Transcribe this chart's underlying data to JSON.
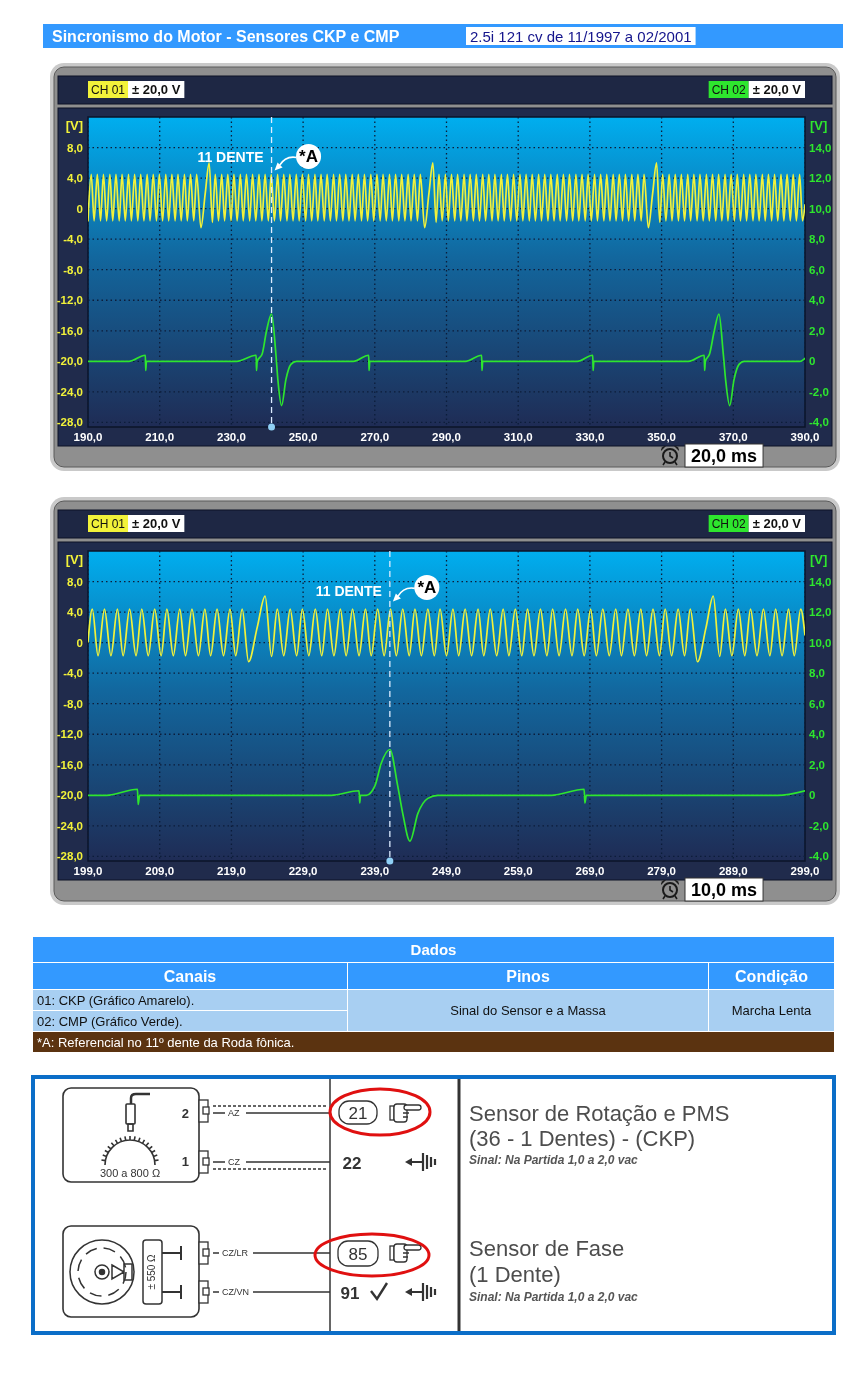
{
  "chart_data": [
    {
      "type": "line",
      "title": "Sincronismo do Motor - Sensores CKP e CMP",
      "subtitle": "2.5i 121 cv de 11/1997 a 02/2001",
      "ylabel": "[V]",
      "y2label": "[V]",
      "xlim": [
        190,
        390
      ],
      "xticks": [
        {
          "value": 190,
          "label": "190,0"
        },
        {
          "value": 210,
          "label": "210,0"
        },
        {
          "value": 230,
          "label": "230,0"
        },
        {
          "value": 250,
          "label": "250,0"
        },
        {
          "value": 270,
          "label": "270,0"
        },
        {
          "value": 290,
          "label": "290,0"
        },
        {
          "value": 310,
          "label": "310,0"
        },
        {
          "value": 330,
          "label": "330,0"
        },
        {
          "value": 350,
          "label": "350,0"
        },
        {
          "value": 370,
          "label": "370,0"
        },
        {
          "value": 390,
          "label": "390,0"
        }
      ],
      "ylim": [
        -28.6,
        12
      ],
      "yticks": [
        {
          "value": 8,
          "label": "8,0"
        },
        {
          "value": 4,
          "label": "4,0"
        },
        0,
        {
          "value": -4,
          "label": "-4,0"
        },
        {
          "value": -8,
          "label": "-8,0"
        },
        {
          "value": -12,
          "label": "-12,0"
        },
        {
          "value": -16,
          "label": "-16,0"
        },
        {
          "value": -20,
          "label": "-20,0"
        },
        {
          "value": -24,
          "label": "-24,0"
        },
        {
          "value": -28,
          "label": "-28,0"
        }
      ],
      "y2lim": [
        -4.3,
        16
      ],
      "y2ticks": [
        {
          "value": 14,
          "label": "14,0"
        },
        {
          "value": 12,
          "label": "12,0"
        },
        {
          "value": 10,
          "label": "10,0"
        },
        {
          "value": 8,
          "label": "8,0"
        },
        {
          "value": 6,
          "label": "6,0"
        },
        {
          "value": 4,
          "label": "4,0"
        },
        {
          "value": 2,
          "label": "2,0"
        },
        0,
        {
          "value": -2,
          "label": "-2,0"
        },
        {
          "value": -4,
          "label": "-4,0"
        }
      ],
      "grid": true,
      "legend": "top",
      "series": [
        {
          "name": "CH 01",
          "color": "#f2f23a",
          "x": [
            190.0,
            190.9,
            191.7,
            192.6,
            193.5,
            194.3,
            195.2,
            196.1,
            196.9,
            197.8,
            198.7,
            199.5,
            200.4,
            201.3,
            202.1,
            203.0,
            203.9,
            204.7,
            205.6,
            206.5,
            207.3,
            208.2,
            209.1,
            209.9,
            210.8,
            211.7,
            212.5,
            213.4,
            214.3,
            215.1,
            216.0,
            216.9,
            217.7,
            218.6,
            219.5,
            220.3,
            221.5,
            222.7,
            223.8,
            224.7,
            225.5,
            226.4,
            227.3,
            228.1,
            229.0,
            229.9,
            230.7,
            231.6,
            232.5,
            233.3,
            234.2,
            235.1,
            235.9,
            236.8,
            237.7,
            238.5,
            239.4,
            240.3,
            241.1,
            242.0,
            242.9,
            243.7,
            244.6,
            245.5,
            246.3,
            247.2,
            248.1,
            248.9,
            249.8,
            250.7,
            251.5,
            252.4,
            253.3,
            254.1,
            255.0,
            255.9,
            256.7,
            257.6,
            258.5,
            259.3,
            260.2,
            261.1,
            261.9,
            262.8,
            263.7,
            264.5,
            265.4,
            266.3,
            267.1,
            268.0,
            268.9,
            269.7,
            270.6,
            271.5,
            272.3,
            273.2,
            274.1,
            274.9,
            275.8,
            276.7,
            277.5,
            278.4,
            279.3,
            280.1,
            281.0,
            281.9,
            282.7,
            283.9,
            285.1,
            286.2,
            287.1,
            287.9,
            288.8,
            289.7,
            290.5,
            291.4,
            292.3,
            293.1,
            294.0,
            294.9,
            295.7,
            296.6,
            297.5,
            298.3,
            299.2,
            300.1,
            300.9,
            301.8,
            302.7,
            303.5,
            304.4,
            305.3,
            306.1,
            307.0,
            307.9,
            308.7,
            309.6,
            310.5,
            311.3,
            312.2,
            313.1,
            313.9,
            314.8,
            315.7,
            316.5,
            317.4,
            318.3,
            319.1,
            320.0,
            320.9,
            321.7,
            322.6,
            323.5,
            324.3,
            325.2,
            326.1,
            326.9,
            327.8,
            328.7,
            329.5,
            330.4,
            331.3,
            332.1,
            333.0,
            333.9,
            334.7,
            335.6,
            336.5,
            337.3,
            338.2,
            339.1,
            339.9,
            340.8,
            341.7,
            342.5,
            343.4,
            344.3,
            345.1,
            346.3,
            347.5,
            348.6,
            349.5,
            350.3,
            351.2,
            352.1,
            352.9,
            353.8,
            354.7,
            355.5,
            356.4,
            357.3,
            358.1,
            359.0,
            359.9,
            360.7,
            361.6,
            362.5,
            363.3,
            364.2,
            365.1,
            365.9,
            366.8,
            367.7,
            368.5,
            369.4,
            370.3,
            371.1,
            372.0,
            372.9,
            373.7,
            374.6,
            375.5,
            376.3,
            377.2,
            378.1,
            378.9,
            379.8,
            380.7,
            381.5,
            382.4,
            383.3,
            384.1,
            385.0,
            385.9,
            386.7,
            387.6,
            388.5,
            389.3,
            390.0
          ],
          "values": [
            -1.6,
            4.5,
            -1.6,
            4.5,
            -1.6,
            4.5,
            -1.6,
            4.5,
            -1.6,
            4.5,
            -1.6,
            4.5,
            -1.6,
            4.5,
            -1.6,
            4.5,
            -1.6,
            4.5,
            -1.6,
            4.5,
            -1.6,
            4.5,
            -1.6,
            4.5,
            -1.6,
            4.5,
            -1.6,
            4.5,
            -1.6,
            4.5,
            -1.6,
            4.5,
            -1.6,
            4.5,
            -1.6,
            4.5,
            -2.5,
            2.0,
            6.0,
            -1.8,
            4.5,
            -1.6,
            4.5,
            -1.6,
            4.5,
            -1.6,
            4.5,
            -1.6,
            4.5,
            -1.6,
            4.5,
            -1.6,
            4.5,
            -1.6,
            4.5,
            -1.6,
            4.5,
            -1.6,
            4.5,
            -1.6,
            4.5,
            -1.6,
            4.5,
            -1.6,
            4.5,
            -1.6,
            4.5,
            -1.6,
            4.5,
            -1.6,
            4.5,
            -1.6,
            4.5,
            -1.6,
            4.5,
            -1.6,
            4.5,
            -1.6,
            4.5,
            -1.6,
            4.5,
            -1.6,
            4.5,
            -1.6,
            4.5,
            -1.6,
            4.5,
            -1.6,
            4.5,
            -1.6,
            4.5,
            -1.6,
            4.5,
            -1.6,
            4.5,
            -1.6,
            4.5,
            -1.6,
            4.5,
            -1.6,
            4.5,
            -1.6,
            4.5,
            -1.6,
            4.5,
            -1.6,
            4.5,
            -2.5,
            2.0,
            6.0,
            -1.8,
            4.5,
            -1.6,
            4.5,
            -1.6,
            4.5,
            -1.6,
            4.5,
            -1.6,
            4.5,
            -1.6,
            4.5,
            -1.6,
            4.5,
            -1.6,
            4.5,
            -1.6,
            4.5,
            -1.6,
            4.5,
            -1.6,
            4.5,
            -1.6,
            4.5,
            -1.6,
            4.5,
            -1.6,
            4.5,
            -1.6,
            4.5,
            -1.6,
            4.5,
            -1.6,
            4.5,
            -1.6,
            4.5,
            -1.6,
            4.5,
            -1.6,
            4.5,
            -1.6,
            4.5,
            -1.6,
            4.5,
            -1.6,
            4.5,
            -1.6,
            4.5,
            -1.6,
            4.5,
            -1.6,
            4.5,
            -1.6,
            4.5,
            -1.6,
            4.5,
            -1.6,
            4.5,
            -1.6,
            4.5,
            -1.6,
            4.5,
            -1.6,
            4.5,
            -1.6,
            4.5,
            -1.6,
            4.5,
            -2.5,
            2.0,
            6.0,
            -1.8,
            4.5,
            -1.6,
            4.5,
            -1.6,
            4.5,
            -1.6,
            4.5,
            -1.6,
            4.5,
            -1.6,
            4.5,
            -1.6,
            4.5,
            -1.6,
            4.5,
            -1.6,
            4.5,
            -1.6,
            4.5,
            -1.6,
            4.5,
            -1.6,
            4.5,
            -1.6,
            4.5,
            -1.6,
            4.5,
            -1.6,
            4.5,
            -1.6,
            4.5,
            -1.6,
            4.5,
            -1.6,
            4.5,
            -1.6,
            4.5,
            -1.6,
            4.5,
            -1.6,
            4.5,
            -1.6,
            4.5,
            -1.6,
            4.5,
            -1.6,
            0.5
          ]
        },
        {
          "name": "CH 02",
          "color": "#2ee62e",
          "axis": "y2",
          "x": [
            190.0,
            201.4,
            206.0,
            206.1,
            206.3,
            231.5,
            236.9,
            237.0,
            237.2,
            238.6,
            239.8,
            241.2,
            242.4,
            243.0,
            244.0,
            245.2,
            246.6,
            248.1,
            264.0,
            268.3,
            268.4,
            268.6,
            295.3,
            299.8,
            299.9,
            300.1,
            326.5,
            330.8,
            330.9,
            331.1,
            357.5,
            361.9,
            362.0,
            362.2,
            363.4,
            364.7,
            366.0,
            367.2,
            367.9,
            369.0,
            370.2,
            371.6,
            373.0,
            388.5,
            390.0
          ],
          "values": [
            0,
            0,
            0.4,
            -0.6,
            0,
            0,
            0.4,
            -0.6,
            0,
            0.5,
            2.0,
            3.1,
            0.5,
            -1.3,
            -2.9,
            -1.2,
            -0.2,
            0,
            0,
            0.4,
            -0.6,
            0,
            0,
            0.4,
            -0.6,
            0,
            0,
            0.4,
            -0.6,
            0,
            0,
            0.4,
            -0.6,
            0,
            0.5,
            2.0,
            3.1,
            0.5,
            -1.3,
            -2.9,
            -1.2,
            -0.2,
            0,
            0,
            0.2
          ]
        }
      ],
      "ref_lines": [
        {
          "axis": "x",
          "value": 241.2,
          "label": "11 DENTE",
          "color": "#dcecff",
          "line_style": "dashed"
        }
      ],
      "annotations": [
        "± 20,0 V",
        "± 20,0 V",
        "20,0 ms",
        {
          "text": "*A",
          "x": 241.2,
          "y": 5.0
        }
      ]
    },
    {
      "type": "line",
      "ylabel": "[V]",
      "y2label": "[V]",
      "xlim": [
        199,
        299
      ],
      "xticks": [
        {
          "value": 199,
          "label": "199,0"
        },
        {
          "value": 209,
          "label": "209,0"
        },
        {
          "value": 219,
          "label": "219,0"
        },
        {
          "value": 229,
          "label": "229,0"
        },
        {
          "value": 239,
          "label": "239,0"
        },
        {
          "value": 249,
          "label": "249,0"
        },
        {
          "value": 259,
          "label": "259,0"
        },
        {
          "value": 269,
          "label": "269,0"
        },
        {
          "value": 279,
          "label": "279,0"
        },
        {
          "value": 289,
          "label": "289,0"
        },
        {
          "value": 299,
          "label": "299,0"
        }
      ],
      "ylim": [
        -28.6,
        12
      ],
      "yticks": [
        {
          "value": 8,
          "label": "8,0"
        },
        {
          "value": 4,
          "label": "4,0"
        },
        0,
        {
          "value": -4,
          "label": "-4,0"
        },
        {
          "value": -8,
          "label": "-8,0"
        },
        {
          "value": -12,
          "label": "-12,0"
        },
        {
          "value": -16,
          "label": "-16,0"
        },
        {
          "value": -20,
          "label": "-20,0"
        },
        {
          "value": -24,
          "label": "-24,0"
        },
        {
          "value": -28,
          "label": "-28,0"
        }
      ],
      "y2lim": [
        -4.3,
        16
      ],
      "y2ticks": [
        {
          "value": 14,
          "label": "14,0"
        },
        {
          "value": 12,
          "label": "12,0"
        },
        {
          "value": 10,
          "label": "10,0"
        },
        {
          "value": 8,
          "label": "8,0"
        },
        {
          "value": 6,
          "label": "6,0"
        },
        {
          "value": 4,
          "label": "4,0"
        },
        {
          "value": 2,
          "label": "2,0"
        },
        0,
        {
          "value": -2,
          "label": "-2,0"
        },
        {
          "value": -4,
          "label": "-4,0"
        }
      ],
      "grid": true,
      "legend": "top",
      "series": [
        {
          "name": "CH 01",
          "color": "#f2f23a",
          "x": [
            199.0,
            199.6,
            200.4,
            201.3,
            202.2,
            203.1,
            203.9,
            204.8,
            205.7,
            206.5,
            207.4,
            208.3,
            209.2,
            210.0,
            210.9,
            211.8,
            212.6,
            213.5,
            214.4,
            215.3,
            216.1,
            217.0,
            217.9,
            218.8,
            219.6,
            220.5,
            221.4,
            222.6,
            223.7,
            224.6,
            225.4,
            226.3,
            227.2,
            228.1,
            228.9,
            229.8,
            230.7,
            231.6,
            232.4,
            233.3,
            234.2,
            235.0,
            235.9,
            236.8,
            237.7,
            238.5,
            239.4,
            240.3,
            241.2,
            242.0,
            242.9,
            243.8,
            244.6,
            245.5,
            246.4,
            247.3,
            248.1,
            249.0,
            249.9,
            250.7,
            251.6,
            252.5,
            253.4,
            254.2,
            255.1,
            256.0,
            256.9,
            257.7,
            258.6,
            259.5,
            260.3,
            261.2,
            262.1,
            263.0,
            263.8,
            264.7,
            265.6,
            266.5,
            267.3,
            268.2,
            269.1,
            269.9,
            270.8,
            271.7,
            272.6,
            273.4,
            274.3,
            275.2,
            276.1,
            276.9,
            277.8,
            278.7,
            279.5,
            280.4,
            281.3,
            282.2,
            283.0,
            284.0,
            285.2,
            286.2,
            287.1,
            287.9,
            288.8,
            289.7,
            290.6,
            291.4,
            292.3,
            293.2,
            294.1,
            294.9,
            295.8,
            296.7,
            297.5,
            298.4,
            299.0
          ],
          "values": [
            0.1,
            4.4,
            -1.7,
            4.4,
            -1.7,
            4.4,
            -1.7,
            4.4,
            -1.7,
            4.4,
            -1.7,
            4.4,
            -1.7,
            4.4,
            -1.7,
            4.4,
            -1.7,
            4.4,
            -1.7,
            4.4,
            -1.7,
            4.4,
            -1.7,
            4.4,
            -1.7,
            4.4,
            -2.5,
            2.0,
            6.1,
            -1.8,
            4.4,
            -1.7,
            4.4,
            -1.7,
            4.4,
            -1.7,
            4.4,
            -1.7,
            4.4,
            -1.7,
            4.4,
            -1.7,
            4.4,
            -1.7,
            4.4,
            -1.7,
            4.4,
            -1.7,
            4.4,
            -1.7,
            4.4,
            -1.7,
            4.4,
            -1.7,
            4.4,
            -1.7,
            4.4,
            -1.7,
            4.4,
            -1.7,
            4.4,
            -1.7,
            4.4,
            -1.7,
            4.4,
            -1.7,
            4.4,
            -1.7,
            4.4,
            -1.7,
            4.4,
            -1.7,
            4.4,
            -1.7,
            4.4,
            -1.7,
            4.4,
            -1.7,
            4.4,
            -1.7,
            4.4,
            -1.7,
            4.4,
            -1.7,
            4.4,
            -1.7,
            4.4,
            -1.7,
            4.4,
            -1.7,
            4.4,
            -1.7,
            4.4,
            -1.7,
            4.4,
            -1.7,
            4.4,
            -2.5,
            2.0,
            6.1,
            -1.8,
            4.4,
            -1.7,
            4.4,
            -1.7,
            4.4,
            -1.7,
            4.4,
            -1.7,
            4.4,
            -1.7,
            4.4,
            -1.7,
            4.4,
            1.0
          ]
        },
        {
          "name": "CH 02",
          "color": "#2ee62e",
          "axis": "y2",
          "x": [
            199.0,
            201.6,
            205.9,
            206.0,
            206.2,
            232.9,
            236.8,
            236.9,
            237.0,
            237.8,
            239.0,
            239.9,
            241.1,
            242.2,
            242.9,
            243.9,
            245.0,
            246.4,
            247.8,
            263.6,
            268.2,
            268.3,
            268.5,
            295.2,
            299.0
          ],
          "values": [
            0,
            0,
            0.4,
            -0.6,
            0,
            0,
            0.3,
            -0.5,
            0,
            0,
            0.6,
            2.1,
            3.0,
            0.6,
            -1.2,
            -3.0,
            -1.2,
            -0.2,
            0,
            0,
            0.4,
            -0.5,
            0,
            0,
            0.3
          ]
        }
      ],
      "ref_lines": [
        {
          "axis": "x",
          "value": 241.1,
          "label": "11 DENTE",
          "color": "#dcecff",
          "line_style": "dashed"
        }
      ],
      "annotations": [
        "± 20,0 V",
        "± 20,0 V",
        "10,0 ms",
        {
          "text": "*A",
          "x": 241.1,
          "y": 5.4
        }
      ]
    },
    {
      "type": "other",
      "title": "Dados",
      "annotations": [
        "Canais",
        "Pinos",
        "Condição",
        "01: CKP (Gráfico Amarelo).",
        "02: CMP (Gráfico Verde).",
        "Sinal do Sensor e a Massa",
        "Marcha Lenta",
        "*A: Referencial no 11º dente da Roda fônica."
      ]
    },
    {
      "type": "other",
      "annotations": [
        "2",
        "1",
        "AZ",
        "CZ",
        "300 a 800 Ω",
        "21",
        "22",
        "Sensor de Rotação e PMS",
        "(36 - 1 Dentes) - (CKP)",
        "Sinal: Na Partida 1,0 a 2,0 vac",
        "± 550 Ω",
        "CZ/LR",
        "CZ/VN",
        "85",
        "91",
        "Sensor de Fase",
        "(1 Dente)",
        "Sinal: Na Partida 1,0 a 2,0 vac"
      ]
    }
  ]
}
